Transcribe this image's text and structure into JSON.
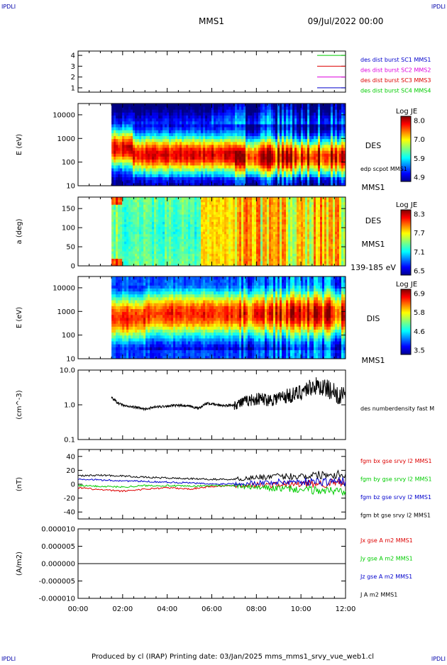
{
  "corners": {
    "tl": "IPDLI",
    "tr": "IPDLI",
    "bl": "IPDLI",
    "br": "IPDLI"
  },
  "header": {
    "mission": "MMS1",
    "date": "09/Jul/2022 00:00"
  },
  "footer": "Produced by cl (IRAP)   Printing date: 03/Jan/2025   mms_mms1_srvy_vue_web1.cl",
  "colors": {
    "red": "#dd0000",
    "green": "#00cc00",
    "blue": "#0000cc",
    "magenta": "#dd00dd",
    "black": "#000000"
  },
  "chart_data": [
    {
      "type": "line",
      "panel": "burst",
      "x_ticks": [
        "00:00",
        "02:00",
        "04:00",
        "06:00",
        "08:00",
        "10:00",
        "12:00"
      ],
      "y_ticks": [
        "1",
        "2",
        "3",
        "4"
      ],
      "ylim": [
        0.6,
        4.4
      ],
      "legend": [
        {
          "label": "des dist burst SC1 MMS1",
          "color": "#0000cc",
          "line_color": "#00cc00",
          "level": 4
        },
        {
          "label": "des dist burst SC2 MMS2",
          "color": "#dd00dd",
          "line_color": "#dd0000",
          "level": 3
        },
        {
          "label": "des dist burst SC3 MMS3",
          "color": "#dd0000",
          "line_color": "#dd00dd",
          "level": 2
        },
        {
          "label": "des dist burst SC4 MMS4",
          "color": "#00cc00",
          "line_color": "#0000cc",
          "level": 1
        }
      ]
    },
    {
      "type": "heatmap",
      "panel": "des-energy",
      "ylabel": "E (eV)",
      "y_ticks": [
        "10",
        "100",
        "1000",
        "10000"
      ],
      "ylim": [
        10,
        30000
      ],
      "yscale": "log",
      "data_start_hour": 1.5,
      "side_labels": [
        "DES",
        "edp scpot MMS1",
        "MMS1"
      ],
      "colorbar": {
        "title": "Log JE",
        "ticks": [
          "8.0",
          "7.0",
          "5.9",
          "4.9"
        ]
      }
    },
    {
      "type": "heatmap",
      "panel": "des-pitch",
      "ylabel": "a (deg)",
      "y_ticks": [
        "0",
        "50",
        "100",
        "150"
      ],
      "ylim": [
        0,
        180
      ],
      "data_start_hour": 1.5,
      "side_labels": [
        "DES",
        "MMS1",
        "139-185 eV"
      ],
      "colorbar": {
        "title": "Log JE",
        "ticks": [
          "8.3",
          "7.7",
          "7.1",
          "6.5"
        ]
      }
    },
    {
      "type": "heatmap",
      "panel": "dis-energy",
      "ylabel": "E (eV)",
      "y_ticks": [
        "10",
        "100",
        "1000",
        "10000"
      ],
      "ylim": [
        10,
        30000
      ],
      "yscale": "log",
      "data_start_hour": 1.5,
      "side_labels": [
        "DIS",
        "MMS1"
      ],
      "colorbar": {
        "title": "Log JE",
        "ticks": [
          "6.9",
          "5.8",
          "4.6",
          "3.5"
        ]
      }
    },
    {
      "type": "line",
      "panel": "density",
      "ylabel": "(cm^-3)",
      "y_ticks": [
        "0.1",
        "1.0",
        "10.0"
      ],
      "ylim": [
        0.1,
        10
      ],
      "yscale": "log",
      "series": [
        {
          "name": "des numberdensity fast M",
          "color": "#000000",
          "x": [
            1.5,
            1.8,
            2.2,
            2.6,
            3.0,
            3.4,
            3.8,
            4.2,
            4.6,
            5.0,
            5.4,
            5.8,
            6.2,
            6.6,
            7.0,
            7.4,
            7.8,
            8.2,
            8.6,
            9.0,
            9.4,
            9.8,
            10.2,
            10.6,
            11.0,
            11.4,
            12.0
          ],
          "y": [
            1.6,
            1.1,
            0.9,
            0.85,
            0.75,
            0.85,
            0.9,
            0.95,
            0.95,
            0.9,
            0.8,
            1.1,
            1.0,
            0.95,
            1.0,
            1.2,
            1.4,
            1.5,
            1.4,
            1.6,
            1.8,
            2.0,
            2.8,
            3.5,
            3.2,
            2.5,
            1.5
          ]
        }
      ]
    },
    {
      "type": "line",
      "panel": "fgm",
      "ylabel": "(nT)",
      "y_ticks": [
        "-40",
        "-20",
        "0",
        "20",
        "40"
      ],
      "ylim": [
        -50,
        50
      ],
      "series": [
        {
          "name": "fgm bx gse srvy l2 MMS1",
          "color": "#dd0000",
          "x": [
            0,
            1,
            2,
            3,
            4,
            5,
            6,
            7,
            8,
            9,
            10,
            11,
            12
          ],
          "y": [
            -5,
            -8,
            -10,
            -7,
            -5,
            -7,
            -3,
            -2,
            -1,
            -1,
            0,
            1,
            2
          ]
        },
        {
          "name": "fgm by gse srvy l2 MMS1",
          "color": "#00cc00",
          "x": [
            0,
            1,
            2,
            3,
            4,
            5,
            6,
            7,
            8,
            9,
            10,
            11,
            12
          ],
          "y": [
            -2,
            -3,
            -4,
            -2,
            -2,
            -3,
            -2,
            -2,
            -5,
            -6,
            -8,
            -9,
            -10
          ]
        },
        {
          "name": "fgm bz gse srvy l2 MMS1",
          "color": "#0000cc",
          "x": [
            0,
            1,
            2,
            3,
            4,
            5,
            6,
            7,
            8,
            9,
            10,
            11,
            12
          ],
          "y": [
            8,
            6,
            5,
            4,
            3,
            2,
            0,
            1,
            2,
            3,
            4,
            4,
            4
          ]
        },
        {
          "name": "fgm bt gse srvy l2 MMS1",
          "color": "#000000",
          "x": [
            0,
            1,
            2,
            3,
            4,
            5,
            6,
            7,
            8,
            9,
            10,
            11,
            12
          ],
          "y": [
            12,
            13,
            12,
            10,
            9,
            8,
            7,
            7,
            10,
            11,
            12,
            14,
            15
          ]
        }
      ]
    },
    {
      "type": "line",
      "panel": "current",
      "ylabel": "(A/m2)",
      "x_ticks": [
        "00:00",
        "02:00",
        "04:00",
        "06:00",
        "08:00",
        "10:00",
        "12:00"
      ],
      "y_ticks": [
        "-0.000010",
        "-0.000005",
        "0.000000",
        "0.000005",
        "0.000010"
      ],
      "ylim": [
        -1e-05,
        1e-05
      ],
      "series": [
        {
          "name": "Jx gse A m2 MMS1",
          "color": "#dd0000",
          "x": [
            0,
            12
          ],
          "y": [
            0,
            0
          ]
        },
        {
          "name": "Jy gse A m2 MMS1",
          "color": "#00cc00",
          "x": [
            0,
            12
          ],
          "y": [
            0,
            0
          ]
        },
        {
          "name": "Jz gse A m2 MMS1",
          "color": "#0000cc",
          "x": [
            0,
            12
          ],
          "y": [
            0,
            0
          ]
        },
        {
          "name": "J A m2 MMS1",
          "color": "#000000",
          "x": [
            0,
            12
          ],
          "y": [
            0,
            0
          ]
        }
      ]
    }
  ]
}
